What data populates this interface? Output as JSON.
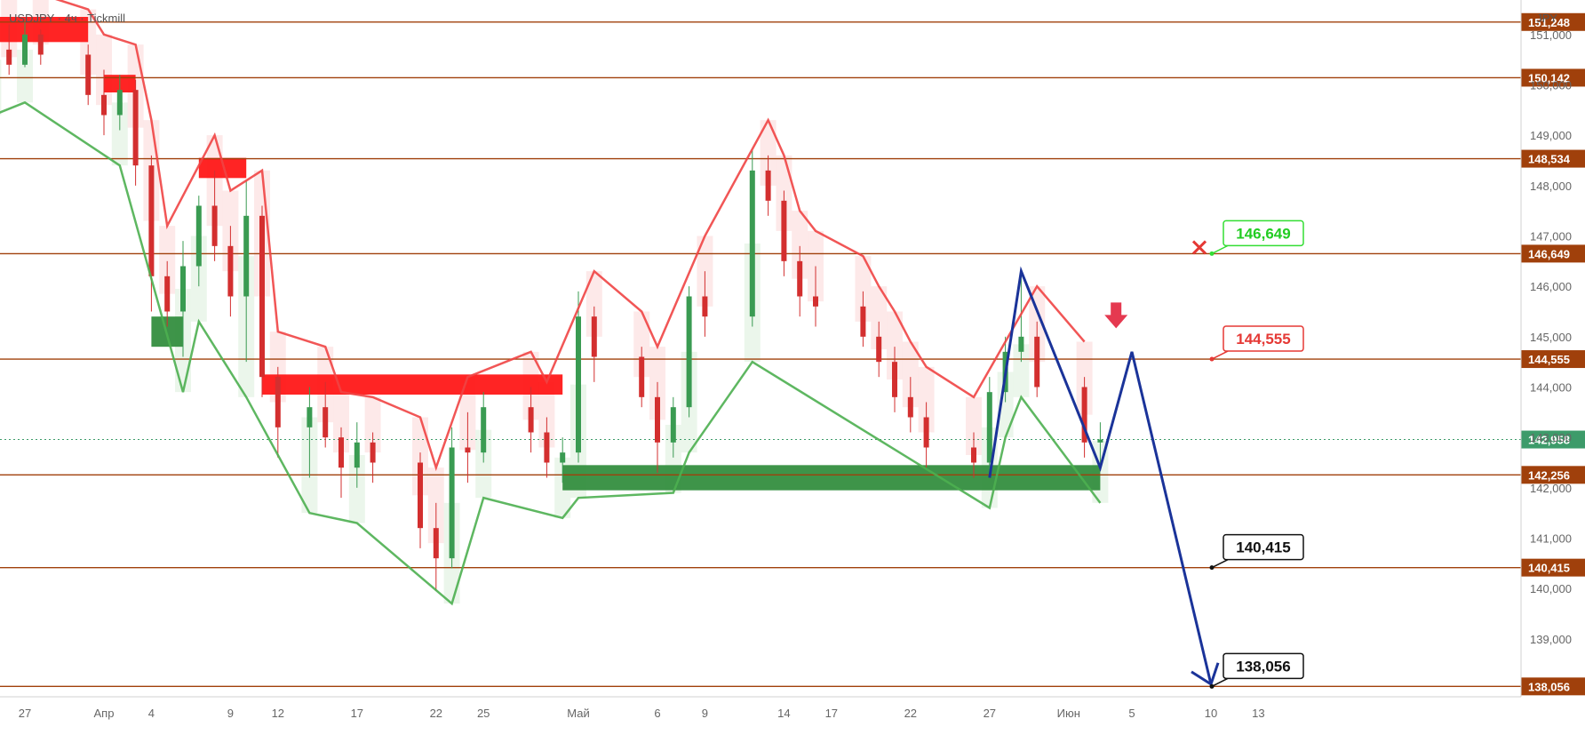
{
  "header": {
    "symbol_line": "USDJPY · 4ч · Tickmill",
    "currency": "JPY"
  },
  "colors": {
    "level_line": "#a0400b",
    "up_candle": "#3a9b52",
    "down_candle": "#d32f2f",
    "supertrend_up": "#4caf50",
    "supertrend_down": "#ef4444",
    "fill_up": "#e6f4e6",
    "fill_down": "#fde4e4",
    "zone_red": "#ff1111",
    "zone_green": "#2e8b3a",
    "projection": "#1a3399",
    "current_price": "#3d9b6a"
  },
  "chart_data": {
    "type": "candlestick",
    "symbol": "USDJPY",
    "timeframe": "4ч",
    "broker": "Tickmill",
    "currency": "JPY",
    "y_range": [
      137.85,
      151.65
    ],
    "y_ticks": [
      "151,000",
      "150,000",
      "149,000",
      "148,000",
      "147,000",
      "146,000",
      "145,000",
      "144,000",
      "143,000",
      "142,000",
      "141,000",
      "140,000",
      "139,000"
    ],
    "y_tick_values": [
      151,
      150,
      149,
      148,
      147,
      146,
      145,
      144,
      143,
      142,
      141,
      140,
      139
    ],
    "x_labels": [
      "27",
      "Апр",
      "4",
      "9",
      "12",
      "17",
      "22",
      "25",
      "Май",
      "6",
      "9",
      "14",
      "17",
      "22",
      "27",
      "Июн",
      "5",
      "10",
      "13"
    ],
    "x_label_dates": [
      "2025-03-27",
      "2025-04-01",
      "2025-04-04",
      "2025-04-09",
      "2025-04-12",
      "2025-04-17",
      "2025-04-22",
      "2025-04-25",
      "2025-05-01",
      "2025-05-06",
      "2025-05-09",
      "2025-05-14",
      "2025-05-17",
      "2025-05-22",
      "2025-05-27",
      "2025-06-01",
      "2025-06-05",
      "2025-06-10",
      "2025-06-13"
    ],
    "levels": [
      {
        "label": "151,248",
        "value": 151.248
      },
      {
        "label": "150,142",
        "value": 150.142
      },
      {
        "label": "148,534",
        "value": 148.534
      },
      {
        "label": "146,649",
        "value": 146.649
      },
      {
        "label": "144,555",
        "value": 144.555
      },
      {
        "label": "142,256",
        "value": 142.256
      },
      {
        "label": "140,415",
        "value": 140.415
      },
      {
        "label": "138,056",
        "value": 138.056
      }
    ],
    "current_price": {
      "label": "142,958",
      "value": 142.958
    },
    "callouts": [
      {
        "label": "146,649",
        "value": 146.649,
        "date": "2025-06-10",
        "style": "green"
      },
      {
        "label": "144,555",
        "value": 144.555,
        "date": "2025-06-10",
        "style": "red"
      },
      {
        "label": "140,415",
        "value": 140.415,
        "date": "2025-06-10",
        "style": "black"
      },
      {
        "label": "138,056",
        "value": 138.056,
        "date": "2025-06-10",
        "style": "black"
      }
    ],
    "cross_marker": {
      "date": "2025-06-10",
      "value": 146.649
    },
    "arrow_marker": {
      "date": "2025-06-04",
      "value": 145.15
    },
    "zones": [
      {
        "type": "supply",
        "x_from": "2025-03-25",
        "x_to": "2025-03-31",
        "y_from": 150.85,
        "y_to": 151.35
      },
      {
        "type": "supply",
        "x_from": "2025-04-01",
        "x_to": "2025-04-03",
        "y_from": 149.85,
        "y_to": 150.2
      },
      {
        "type": "supply",
        "x_from": "2025-04-07",
        "x_to": "2025-04-10",
        "y_from": 148.15,
        "y_to": 148.55
      },
      {
        "type": "supply",
        "x_from": "2025-04-11",
        "x_to": "2025-04-30",
        "y_from": 143.85,
        "y_to": 144.25
      },
      {
        "type": "demand",
        "x_from": "2025-04-04",
        "x_to": "2025-04-06",
        "y_from": 144.8,
        "y_to": 145.4
      },
      {
        "type": "demand",
        "x_from": "2025-04-30",
        "x_to": "2025-06-03",
        "y_from": 141.95,
        "y_to": 142.45
      }
    ],
    "projection_path": [
      {
        "date": "2025-05-27",
        "value": 142.2
      },
      {
        "date": "2025-05-29",
        "value": 146.3
      },
      {
        "date": "2025-06-03",
        "value": 142.4
      },
      {
        "date": "2025-06-05",
        "value": 144.7
      },
      {
        "date": "2025-06-10",
        "value": 138.1
      }
    ],
    "candles_ohlc": [
      [
        "2025-03-25",
        150.3,
        150.9,
        150.1,
        150.7
      ],
      [
        "2025-03-26",
        150.7,
        151.2,
        150.2,
        150.4
      ],
      [
        "2025-03-27",
        150.4,
        151.25,
        150.35,
        151.0
      ],
      [
        "2025-03-28",
        151.0,
        151.1,
        150.4,
        150.6
      ],
      [
        "2025-03-31",
        150.6,
        150.8,
        149.6,
        149.8
      ],
      [
        "2025-04-01",
        149.8,
        150.3,
        149.0,
        149.4
      ],
      [
        "2025-04-02",
        149.4,
        150.2,
        149.1,
        149.9
      ],
      [
        "2025-04-03",
        149.9,
        150.1,
        148.0,
        148.4
      ],
      [
        "2025-04-04",
        148.4,
        148.6,
        145.5,
        146.2
      ],
      [
        "2025-04-05",
        146.2,
        146.5,
        145.2,
        145.5
      ],
      [
        "2025-04-06",
        145.5,
        146.9,
        144.6,
        146.4
      ],
      [
        "2025-04-07",
        146.4,
        147.8,
        146.0,
        147.6
      ],
      [
        "2025-04-08",
        147.6,
        148.3,
        146.5,
        146.8
      ],
      [
        "2025-04-09",
        146.8,
        147.2,
        145.4,
        145.8
      ],
      [
        "2025-04-10",
        145.8,
        148.1,
        144.5,
        147.4
      ],
      [
        "2025-04-11",
        147.4,
        147.6,
        143.8,
        144.2
      ],
      [
        "2025-04-12",
        144.2,
        144.4,
        142.6,
        143.2
      ],
      [
        "2025-04-14",
        143.2,
        144.0,
        142.2,
        143.6
      ],
      [
        "2025-04-15",
        143.6,
        144.1,
        142.8,
        143.0
      ],
      [
        "2025-04-16",
        143.0,
        143.2,
        141.8,
        142.4
      ],
      [
        "2025-04-17",
        142.4,
        143.3,
        142.0,
        142.9
      ],
      [
        "2025-04-18",
        142.9,
        143.1,
        142.1,
        142.5
      ],
      [
        "2025-04-21",
        142.5,
        142.7,
        140.8,
        141.2
      ],
      [
        "2025-04-22",
        141.2,
        141.7,
        139.95,
        140.6
      ],
      [
        "2025-04-23",
        140.6,
        143.2,
        140.4,
        142.8
      ],
      [
        "2025-04-24",
        142.8,
        143.5,
        142.1,
        142.7
      ],
      [
        "2025-04-25",
        142.7,
        143.9,
        142.5,
        143.6
      ],
      [
        "2025-04-28",
        143.6,
        144.0,
        142.7,
        143.1
      ],
      [
        "2025-04-29",
        143.1,
        143.4,
        142.2,
        142.5
      ],
      [
        "2025-04-30",
        142.5,
        143.0,
        142.1,
        142.7
      ],
      [
        "2025-05-01",
        142.7,
        145.9,
        142.5,
        145.4
      ],
      [
        "2025-05-02",
        145.4,
        145.6,
        144.1,
        144.6
      ],
      [
        "2025-05-05",
        144.6,
        144.8,
        143.6,
        143.8
      ],
      [
        "2025-05-06",
        143.8,
        144.1,
        142.3,
        142.9
      ],
      [
        "2025-05-07",
        142.9,
        143.8,
        142.6,
        143.6
      ],
      [
        "2025-05-08",
        143.6,
        146.0,
        143.4,
        145.8
      ],
      [
        "2025-05-09",
        145.8,
        146.3,
        145.0,
        145.4
      ],
      [
        "2025-05-12",
        145.4,
        148.7,
        145.2,
        148.3
      ],
      [
        "2025-05-13",
        148.3,
        148.6,
        147.4,
        147.7
      ],
      [
        "2025-05-14",
        147.7,
        147.9,
        146.2,
        146.5
      ],
      [
        "2025-05-15",
        146.5,
        146.8,
        145.4,
        145.8
      ],
      [
        "2025-05-16",
        145.8,
        146.4,
        145.2,
        145.6
      ],
      [
        "2025-05-19",
        145.6,
        145.9,
        144.8,
        145.0
      ],
      [
        "2025-05-20",
        145.0,
        145.3,
        144.2,
        144.5
      ],
      [
        "2025-05-21",
        144.5,
        144.8,
        143.5,
        143.8
      ],
      [
        "2025-05-22",
        143.8,
        144.2,
        143.1,
        143.4
      ],
      [
        "2025-05-23",
        143.4,
        143.7,
        142.4,
        142.8
      ],
      [
        "2025-05-26",
        142.8,
        143.1,
        142.2,
        142.5
      ],
      [
        "2025-05-27",
        142.5,
        144.2,
        142.3,
        143.9
      ],
      [
        "2025-05-28",
        143.9,
        145.0,
        143.7,
        144.7
      ],
      [
        "2025-05-29",
        144.7,
        146.3,
        144.5,
        145.0
      ],
      [
        "2025-05-30",
        145.0,
        145.3,
        143.8,
        144.0
      ],
      [
        "2025-06-02",
        144.0,
        144.2,
        142.6,
        142.9
      ],
      [
        "2025-06-03",
        142.9,
        143.3,
        142.4,
        142.958
      ]
    ]
  }
}
